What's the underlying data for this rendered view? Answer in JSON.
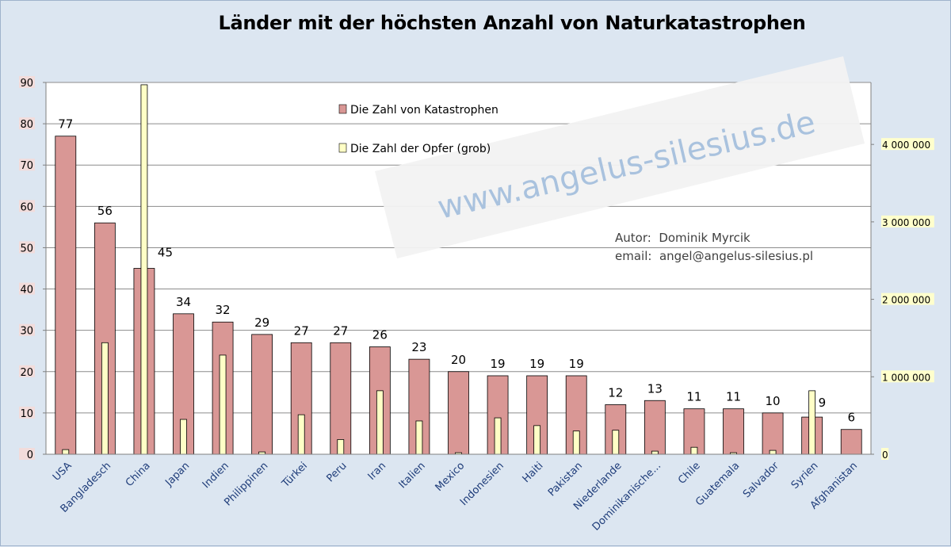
{
  "chart_data": {
    "type": "bar",
    "title": "Länder mit der höchsten Anzahl von Naturkatastrophen",
    "categories": [
      "USA",
      "Bangladesch",
      "China",
      "Japan",
      "Indien",
      "Philippinen",
      "Türkei",
      "Peru",
      "Iran",
      "Italien",
      "Mexico",
      "Indonesien",
      "Haiti",
      "Pakistan",
      "Niederlande",
      "Dominikanische...",
      "Chile",
      "Guatemala",
      "Salvador",
      "Syrien",
      "Afghanistan"
    ],
    "series": [
      {
        "name": "Die Zahl von Katastrophen",
        "axis": "left",
        "color": "#d99795",
        "values": [
          77,
          56,
          45,
          34,
          32,
          29,
          27,
          27,
          26,
          23,
          20,
          19,
          19,
          19,
          12,
          13,
          11,
          11,
          10,
          9,
          6
        ]
      },
      {
        "name": "Die Zahl der Opfer (grob)",
        "axis": "right",
        "color": "#ffffc6",
        "values": [
          60000,
          1440000,
          4770000,
          450000,
          1280000,
          30000,
          510000,
          190000,
          820000,
          430000,
          20000,
          470000,
          370000,
          300000,
          310000,
          40000,
          90000,
          20000,
          50000,
          820000,
          0
        ]
      }
    ],
    "ylim": [
      0,
      90
    ],
    "yticks": [
      "0",
      "10",
      "20",
      "30",
      "40",
      "50",
      "60",
      "70",
      "80",
      "90"
    ],
    "y2lim": [
      0,
      4800000
    ],
    "y2ticks": [
      "0",
      "1 000 000",
      "2 000 000",
      "3 000 000",
      "4 000 000"
    ],
    "grid": true,
    "legend_position": "top-center"
  },
  "author": {
    "line1": "Autor:  Dominik Myrcik",
    "line2": "email:  angel@angelus-silesius.pl"
  },
  "watermark": "www.angelus-silesius.de",
  "colors": {
    "background": "#dce6f1",
    "plot_background": "#ffffff",
    "category_label": "#1f3d7a"
  }
}
